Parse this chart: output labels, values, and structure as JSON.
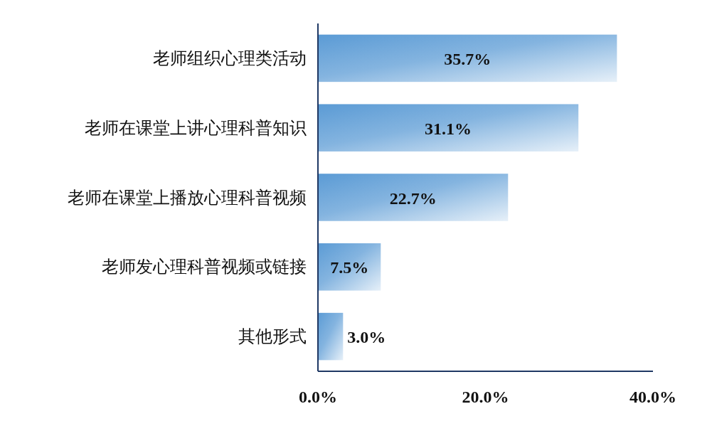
{
  "chart_data": {
    "type": "bar",
    "orientation": "horizontal",
    "categories": [
      "老师组织心理类活动",
      "老师在课堂上讲心理科普知识",
      "老师在课堂上播放心理科普视频",
      "老师发心理科普视频或链接",
      "其他形式"
    ],
    "values": [
      35.7,
      31.1,
      22.7,
      7.5,
      3.0
    ],
    "value_labels": [
      "35.7%",
      "31.1%",
      "22.7%",
      "7.5%",
      "3.0%"
    ],
    "color": "#5b9bd5",
    "xlim": [
      0,
      40
    ],
    "xticks": [
      {
        "value": 0,
        "label": "0.0%"
      },
      {
        "value": 20,
        "label": "20.0%"
      },
      {
        "value": 40,
        "label": "40.0%"
      }
    ],
    "grid": false
  }
}
